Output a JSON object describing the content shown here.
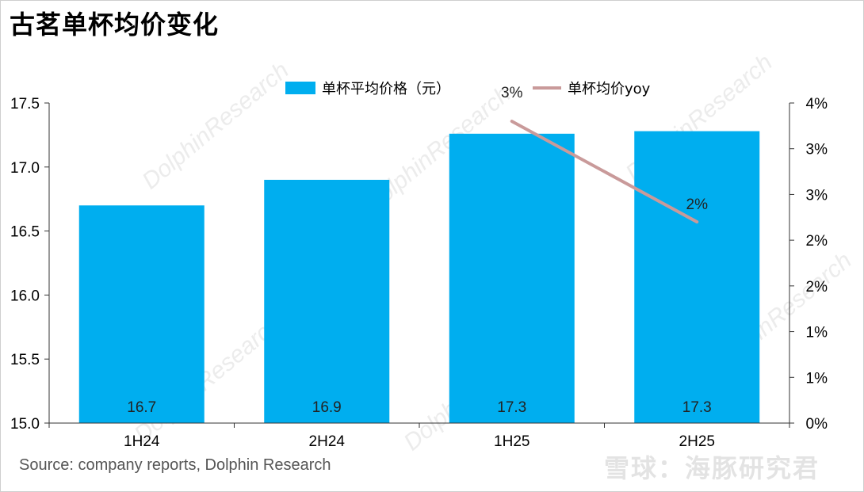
{
  "title": "古茗单杯均价变化",
  "source": "Source: company reports, Dolphin Research",
  "watermark": {
    "text": "DolphinResearch",
    "brand": "雪球：海豚研究君"
  },
  "colors": {
    "bar": "#00aeef",
    "line": "#c99a9a",
    "axis": "#333333"
  },
  "chart_data": {
    "type": "bar",
    "categories": [
      "1H24",
      "2H24",
      "1H25",
      "2H25"
    ],
    "series": [
      {
        "name": "单杯平均价格（元）",
        "type": "bar",
        "axis": "left",
        "values": [
          16.7,
          16.9,
          17.26,
          17.28
        ],
        "labels": [
          "16.7",
          "16.9",
          "17.3",
          "17.3"
        ]
      },
      {
        "name": "单杯均价yoy",
        "type": "line",
        "axis": "right",
        "points": [
          {
            "x": "1H25",
            "y": 0.033
          },
          {
            "x": "2H25",
            "y": 0.022
          }
        ],
        "labels": [
          "3%",
          "2%"
        ]
      }
    ],
    "y_left": {
      "range": [
        15.0,
        17.5
      ],
      "ticks": [
        15.0,
        15.5,
        16.0,
        16.5,
        17.0,
        17.5
      ],
      "tick_labels": [
        "15.0",
        "15.5",
        "16.0",
        "16.5",
        "17.0",
        "17.5"
      ]
    },
    "y_right": {
      "range": [
        0,
        0.035
      ],
      "ticks": [
        0,
        0.005,
        0.01,
        0.015,
        0.02,
        0.025,
        0.03,
        0.035
      ],
      "tick_labels": [
        "0%",
        "1%",
        "1%",
        "2%",
        "2%",
        "3%",
        "3%",
        "4%"
      ]
    },
    "grid": false,
    "legend_position": "top-center"
  }
}
